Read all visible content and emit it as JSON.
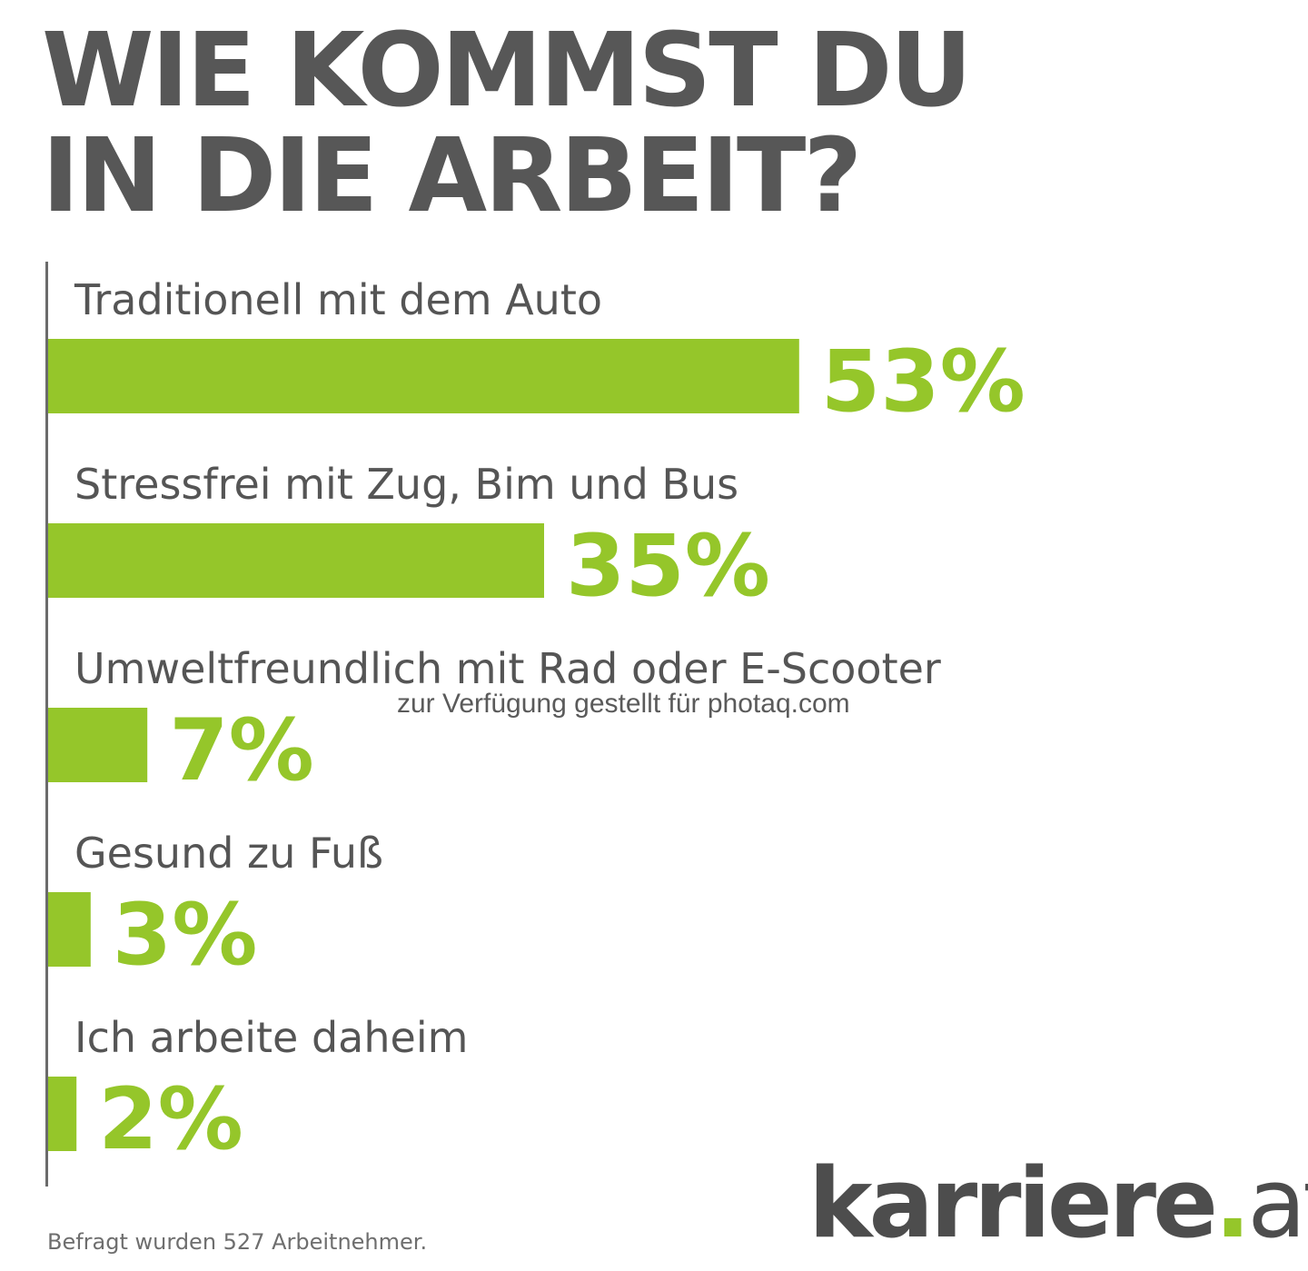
{
  "title_lines": [
    "WIE KOMMST DU",
    "IN DIE ARBEIT?"
  ],
  "chart_data": {
    "type": "bar",
    "orientation": "horizontal",
    "title": "WIE KOMMST DU IN DIE ARBEIT?",
    "categories": [
      "Traditionell mit dem Auto",
      "Stressfrei mit Zug, Bim und Bus",
      "Umweltfreundlich mit Rad oder E-Scooter",
      "Gesund zu Fuß",
      "Ich arbeite daheim"
    ],
    "values": [
      53,
      35,
      7,
      3,
      2
    ],
    "value_labels": [
      "53%",
      "35%",
      "7%",
      "3%",
      "2%"
    ],
    "xlabel": "",
    "ylabel": "",
    "grid": false,
    "bar_color": "#95c62a"
  },
  "colors": {
    "accent": "#95c62a",
    "title": "#575757",
    "text": "#555555"
  },
  "watermark": "zur Verfügung gestellt für photaq.com",
  "footnote": "Befragt wurden 527 Arbeitnehmer.",
  "logo": {
    "main": "karriere",
    "dot": ".",
    "tld": "at"
  }
}
